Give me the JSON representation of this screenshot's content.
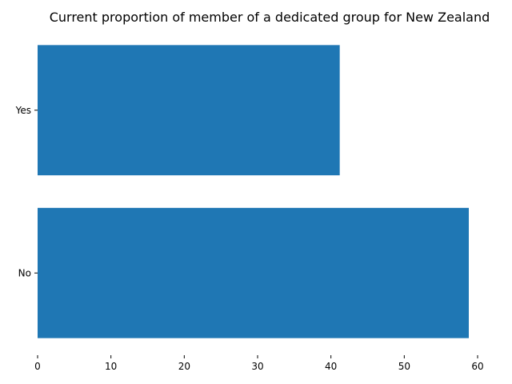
{
  "chart_data": {
    "type": "bar",
    "orientation": "horizontal",
    "title": "Current proportion of member of a dedicated group for New Zealand",
    "categories": [
      "Yes",
      "No"
    ],
    "values": [
      41.2,
      58.8
    ],
    "xlabel": "",
    "ylabel": "",
    "xlim": [
      0,
      60
    ],
    "xticks": [
      0,
      10,
      20,
      30,
      40,
      50,
      60
    ],
    "grid": false,
    "bar_color": "#1f77b4"
  }
}
